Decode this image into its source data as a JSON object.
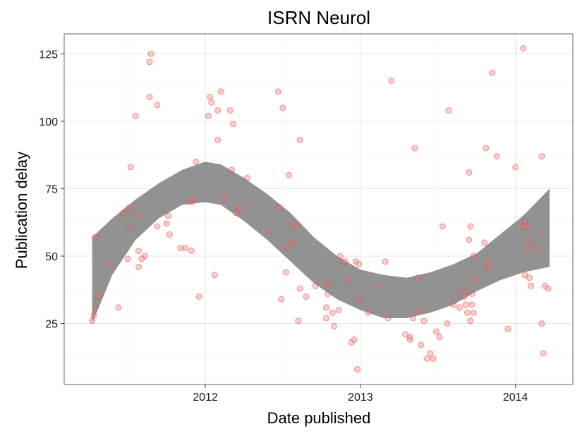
{
  "chart_data": {
    "type": "scatter",
    "title": "ISRN Neurol",
    "xlabel": "Date published",
    "ylabel": "Publication delay",
    "xlim": [
      2011.09,
      2014.37
    ],
    "ylim": [
      2.4,
      132.4
    ],
    "x_ticks": [
      {
        "value": 2012,
        "label": "2012"
      },
      {
        "value": 2013,
        "label": "2013"
      },
      {
        "value": 2014,
        "label": "2014"
      }
    ],
    "y_ticks": [
      {
        "value": 25,
        "label": "25"
      },
      {
        "value": 50,
        "label": "50"
      },
      {
        "value": 75,
        "label": "75"
      },
      {
        "value": 100,
        "label": "100"
      },
      {
        "value": 125,
        "label": "125"
      }
    ],
    "grid": true,
    "legend": "none",
    "colors": {
      "points": "#f8766d",
      "band": "#7a7a7a",
      "panel_border": "#7f7f7f"
    },
    "points": [
      {
        "x": 2011.27,
        "y": 26
      },
      {
        "x": 2011.28,
        "y": 28
      },
      {
        "x": 2011.29,
        "y": 31
      },
      {
        "x": 2011.29,
        "y": 57
      },
      {
        "x": 2011.31,
        "y": 35
      },
      {
        "x": 2011.39,
        "y": 47
      },
      {
        "x": 2011.44,
        "y": 31
      },
      {
        "x": 2011.47,
        "y": 66
      },
      {
        "x": 2011.5,
        "y": 49
      },
      {
        "x": 2011.51,
        "y": 60
      },
      {
        "x": 2011.51,
        "y": 68
      },
      {
        "x": 2011.52,
        "y": 83
      },
      {
        "x": 2011.55,
        "y": 65
      },
      {
        "x": 2011.55,
        "y": 102
      },
      {
        "x": 2011.57,
        "y": 46
      },
      {
        "x": 2011.57,
        "y": 52
      },
      {
        "x": 2011.59,
        "y": 49
      },
      {
        "x": 2011.61,
        "y": 50
      },
      {
        "x": 2011.64,
        "y": 109
      },
      {
        "x": 2011.64,
        "y": 122
      },
      {
        "x": 2011.65,
        "y": 125
      },
      {
        "x": 2011.69,
        "y": 106
      },
      {
        "x": 2011.69,
        "y": 61
      },
      {
        "x": 2011.75,
        "y": 62
      },
      {
        "x": 2011.76,
        "y": 65
      },
      {
        "x": 2011.77,
        "y": 58
      },
      {
        "x": 2011.84,
        "y": 53
      },
      {
        "x": 2011.87,
        "y": 53
      },
      {
        "x": 2011.91,
        "y": 52
      },
      {
        "x": 2011.91,
        "y": 70
      },
      {
        "x": 2011.92,
        "y": 71
      },
      {
        "x": 2011.94,
        "y": 85
      },
      {
        "x": 2011.96,
        "y": 35
      },
      {
        "x": 2012.02,
        "y": 102
      },
      {
        "x": 2012.03,
        "y": 109
      },
      {
        "x": 2012.04,
        "y": 107
      },
      {
        "x": 2012.06,
        "y": 43
      },
      {
        "x": 2012.08,
        "y": 104
      },
      {
        "x": 2012.08,
        "y": 93
      },
      {
        "x": 2012.1,
        "y": 111
      },
      {
        "x": 2012.12,
        "y": 72
      },
      {
        "x": 2012.16,
        "y": 104
      },
      {
        "x": 2012.17,
        "y": 82
      },
      {
        "x": 2012.18,
        "y": 99
      },
      {
        "x": 2012.2,
        "y": 66
      },
      {
        "x": 2012.22,
        "y": 68
      },
      {
        "x": 2012.27,
        "y": 79
      },
      {
        "x": 2012.41,
        "y": 59
      },
      {
        "x": 2012.47,
        "y": 111
      },
      {
        "x": 2012.48,
        "y": 68
      },
      {
        "x": 2012.49,
        "y": 34
      },
      {
        "x": 2012.5,
        "y": 105
      },
      {
        "x": 2012.52,
        "y": 44
      },
      {
        "x": 2012.53,
        "y": 53
      },
      {
        "x": 2012.54,
        "y": 80
      },
      {
        "x": 2012.56,
        "y": 55
      },
      {
        "x": 2012.57,
        "y": 62
      },
      {
        "x": 2012.59,
        "y": 61
      },
      {
        "x": 2012.6,
        "y": 26
      },
      {
        "x": 2012.61,
        "y": 38
      },
      {
        "x": 2012.61,
        "y": 93
      },
      {
        "x": 2012.65,
        "y": 35
      },
      {
        "x": 2012.71,
        "y": 39
      },
      {
        "x": 2012.78,
        "y": 27
      },
      {
        "x": 2012.78,
        "y": 31
      },
      {
        "x": 2012.79,
        "y": 36
      },
      {
        "x": 2012.79,
        "y": 40
      },
      {
        "x": 2012.82,
        "y": 29
      },
      {
        "x": 2012.83,
        "y": 24
      },
      {
        "x": 2012.86,
        "y": 30
      },
      {
        "x": 2012.87,
        "y": 50
      },
      {
        "x": 2012.9,
        "y": 48
      },
      {
        "x": 2012.92,
        "y": 41
      },
      {
        "x": 2012.94,
        "y": 18
      },
      {
        "x": 2012.96,
        "y": 19
      },
      {
        "x": 2012.97,
        "y": 48
      },
      {
        "x": 2012.98,
        "y": 8
      },
      {
        "x": 2012.99,
        "y": 47
      },
      {
        "x": 2012.99,
        "y": 34
      },
      {
        "x": 2013.05,
        "y": 29
      },
      {
        "x": 2013.11,
        "y": 39
      },
      {
        "x": 2013.16,
        "y": 48
      },
      {
        "x": 2013.18,
        "y": 27
      },
      {
        "x": 2013.2,
        "y": 115
      },
      {
        "x": 2013.29,
        "y": 21
      },
      {
        "x": 2013.32,
        "y": 20
      },
      {
        "x": 2013.32,
        "y": 19
      },
      {
        "x": 2013.34,
        "y": 27
      },
      {
        "x": 2013.35,
        "y": 90
      },
      {
        "x": 2013.37,
        "y": 42
      },
      {
        "x": 2013.37,
        "y": 30
      },
      {
        "x": 2013.39,
        "y": 17
      },
      {
        "x": 2013.41,
        "y": 26
      },
      {
        "x": 2013.43,
        "y": 12
      },
      {
        "x": 2013.45,
        "y": 14
      },
      {
        "x": 2013.47,
        "y": 12
      },
      {
        "x": 2013.49,
        "y": 22
      },
      {
        "x": 2013.51,
        "y": 20
      },
      {
        "x": 2013.53,
        "y": 61
      },
      {
        "x": 2013.56,
        "y": 25
      },
      {
        "x": 2013.57,
        "y": 104
      },
      {
        "x": 2013.6,
        "y": 32
      },
      {
        "x": 2013.64,
        "y": 31
      },
      {
        "x": 2013.66,
        "y": 38
      },
      {
        "x": 2013.67,
        "y": 35
      },
      {
        "x": 2013.68,
        "y": 32
      },
      {
        "x": 2013.69,
        "y": 29
      },
      {
        "x": 2013.7,
        "y": 81
      },
      {
        "x": 2013.7,
        "y": 56
      },
      {
        "x": 2013.71,
        "y": 61
      },
      {
        "x": 2013.71,
        "y": 26
      },
      {
        "x": 2013.72,
        "y": 32
      },
      {
        "x": 2013.72,
        "y": 36
      },
      {
        "x": 2013.73,
        "y": 50
      },
      {
        "x": 2013.73,
        "y": 41
      },
      {
        "x": 2013.73,
        "y": 29
      },
      {
        "x": 2013.8,
        "y": 55
      },
      {
        "x": 2013.81,
        "y": 90
      },
      {
        "x": 2013.82,
        "y": 48
      },
      {
        "x": 2013.83,
        "y": 46
      },
      {
        "x": 2013.85,
        "y": 118
      },
      {
        "x": 2013.88,
        "y": 87
      },
      {
        "x": 2013.95,
        "y": 23
      },
      {
        "x": 2014.0,
        "y": 83
      },
      {
        "x": 2014.05,
        "y": 61
      },
      {
        "x": 2014.05,
        "y": 127
      },
      {
        "x": 2014.06,
        "y": 43
      },
      {
        "x": 2014.06,
        "y": 63
      },
      {
        "x": 2014.07,
        "y": 53
      },
      {
        "x": 2014.07,
        "y": 61
      },
      {
        "x": 2014.08,
        "y": 56
      },
      {
        "x": 2014.09,
        "y": 42
      },
      {
        "x": 2014.1,
        "y": 39
      },
      {
        "x": 2014.13,
        "y": 53
      },
      {
        "x": 2014.17,
        "y": 87
      },
      {
        "x": 2014.17,
        "y": 25
      },
      {
        "x": 2014.18,
        "y": 14
      },
      {
        "x": 2014.19,
        "y": 39
      },
      {
        "x": 2014.21,
        "y": 38
      }
    ],
    "band": [
      {
        "x": 2011.27,
        "low": 25,
        "high": 57
      },
      {
        "x": 2011.4,
        "low": 43,
        "high": 64
      },
      {
        "x": 2011.55,
        "low": 56,
        "high": 71
      },
      {
        "x": 2011.7,
        "low": 64,
        "high": 77
      },
      {
        "x": 2011.85,
        "low": 69,
        "high": 82
      },
      {
        "x": 2012.0,
        "low": 70,
        "high": 85
      },
      {
        "x": 2012.1,
        "low": 69,
        "high": 84
      },
      {
        "x": 2012.25,
        "low": 63,
        "high": 79
      },
      {
        "x": 2012.4,
        "low": 56,
        "high": 73
      },
      {
        "x": 2012.55,
        "low": 48,
        "high": 66
      },
      {
        "x": 2012.7,
        "low": 40,
        "high": 57
      },
      {
        "x": 2012.85,
        "low": 34,
        "high": 50
      },
      {
        "x": 2013.0,
        "low": 30,
        "high": 45
      },
      {
        "x": 2013.15,
        "low": 27,
        "high": 43
      },
      {
        "x": 2013.3,
        "low": 27,
        "high": 42
      },
      {
        "x": 2013.45,
        "low": 29,
        "high": 44
      },
      {
        "x": 2013.6,
        "low": 32,
        "high": 47
      },
      {
        "x": 2013.75,
        "low": 37,
        "high": 51
      },
      {
        "x": 2013.9,
        "low": 41,
        "high": 58
      },
      {
        "x": 2014.05,
        "low": 44,
        "high": 65
      },
      {
        "x": 2014.22,
        "low": 46,
        "high": 75
      }
    ]
  }
}
